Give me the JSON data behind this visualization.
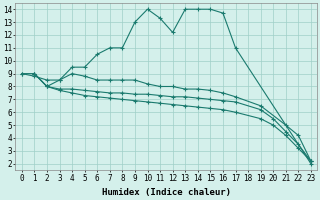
{
  "line1_x": [
    0,
    1,
    2,
    3,
    4,
    5,
    6,
    7,
    8,
    9,
    10,
    11,
    12,
    13,
    14,
    15,
    16,
    17,
    23
  ],
  "line1_y": [
    9,
    9,
    8,
    8.5,
    9.5,
    9.5,
    10.5,
    11,
    11,
    13,
    14,
    13.3,
    12.2,
    14,
    14,
    14,
    13.7,
    11,
    2
  ],
  "line2_x": [
    0,
    1,
    2,
    3,
    4,
    5,
    6,
    7,
    8,
    9,
    10,
    11,
    12,
    13,
    14,
    15,
    16,
    17,
    19,
    21,
    22,
    23
  ],
  "line2_y": [
    9,
    8.8,
    8.5,
    8.5,
    9,
    8.8,
    8.5,
    8.5,
    8.5,
    8.5,
    8.2,
    8.0,
    8.0,
    7.8,
    7.8,
    7.7,
    7.5,
    7.2,
    6.5,
    5,
    4.2,
    2.2
  ],
  "line3_x": [
    1,
    2,
    3,
    4,
    5,
    6,
    7,
    8,
    9,
    10,
    11,
    12,
    13,
    14,
    15,
    16,
    17,
    19,
    20,
    21,
    22,
    23
  ],
  "line3_y": [
    9,
    8,
    7.8,
    7.8,
    7.7,
    7.6,
    7.5,
    7.5,
    7.4,
    7.4,
    7.3,
    7.2,
    7.2,
    7.1,
    7.0,
    6.9,
    6.8,
    6.2,
    5.5,
    4.5,
    3.5,
    2.2
  ],
  "line4_x": [
    1,
    2,
    3,
    4,
    5,
    6,
    7,
    8,
    9,
    10,
    11,
    12,
    13,
    14,
    15,
    16,
    17,
    19,
    20,
    21,
    22,
    23
  ],
  "line4_y": [
    9,
    8,
    7.7,
    7.5,
    7.3,
    7.2,
    7.1,
    7.0,
    6.9,
    6.8,
    6.7,
    6.6,
    6.5,
    6.4,
    6.3,
    6.2,
    6.0,
    5.5,
    5.0,
    4.2,
    3.2,
    2.2
  ],
  "line_color": "#1a7a6e",
  "bg_color": "#d4f0eb",
  "grid_color": "#a0d0c8",
  "xlabel": "Humidex (Indice chaleur)",
  "xlim": [
    -0.5,
    23.5
  ],
  "ylim": [
    1.5,
    14.5
  ],
  "xticks": [
    0,
    1,
    2,
    3,
    4,
    5,
    6,
    7,
    8,
    9,
    10,
    11,
    12,
    13,
    14,
    15,
    16,
    17,
    18,
    19,
    20,
    21,
    22,
    23
  ],
  "yticks": [
    2,
    3,
    4,
    5,
    6,
    7,
    8,
    9,
    10,
    11,
    12,
    13,
    14
  ],
  "tick_fontsize": 5.5,
  "xlabel_fontsize": 6.5
}
